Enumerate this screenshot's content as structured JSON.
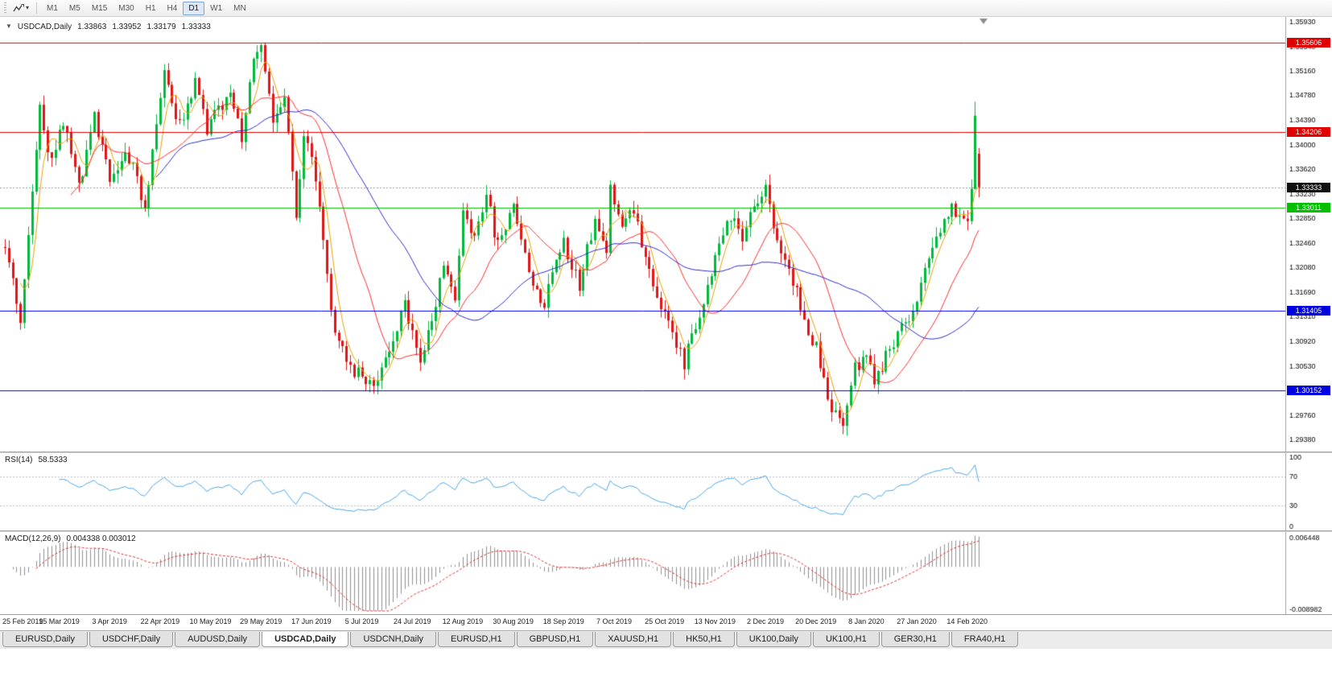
{
  "toolbar": {
    "timeframes": [
      {
        "label": "M1",
        "active": false
      },
      {
        "label": "M5",
        "active": false
      },
      {
        "label": "M15",
        "active": false
      },
      {
        "label": "M30",
        "active": false
      },
      {
        "label": "H1",
        "active": false
      },
      {
        "label": "H4",
        "active": false
      },
      {
        "label": "D1",
        "active": true
      },
      {
        "label": "W1",
        "active": false
      },
      {
        "label": "MN",
        "active": false
      }
    ]
  },
  "chart_header": {
    "collapse_icon": "▼",
    "symbol": "USDCAD,Daily",
    "open": "1.33863",
    "high": "1.33952",
    "low": "1.33179",
    "close": "1.33333"
  },
  "price_axis": {
    "ticks": [
      "1.35930",
      "1.35540",
      "1.35160",
      "1.34780",
      "1.34390",
      "1.34000",
      "1.33620",
      "1.33230",
      "1.32850",
      "1.32460",
      "1.32080",
      "1.31690",
      "1.31310",
      "1.30920",
      "1.30530",
      "1.30140",
      "1.29760",
      "1.29380"
    ]
  },
  "hlines": [
    {
      "price": 1.35606,
      "label": "1.35606",
      "color": "#e00000",
      "type": "resistance"
    },
    {
      "price": 1.34206,
      "label": "1.34206",
      "color": "#e00000",
      "type": "resistance"
    },
    {
      "price": 1.33011,
      "label": "1.33011",
      "color": "#00c000",
      "type": "level"
    },
    {
      "price": 1.31405,
      "label": "1.31405",
      "color": "#0000e0",
      "type": "support"
    },
    {
      "price": 1.30152,
      "label": "1.30152",
      "color": "#0000e0",
      "type": "support"
    }
  ],
  "current_price": {
    "value": 1.33333,
    "label": "1.33333"
  },
  "rsi_panel": {
    "name": "RSI(14)",
    "value": "58.5333",
    "axis": [
      "100",
      "70",
      "30",
      "0"
    ],
    "levels": [
      70,
      30
    ]
  },
  "macd_panel": {
    "name": "MACD(12,26,9)",
    "values": "0.004338 0.003012",
    "axis_top": "0.006448",
    "axis_bottom": "-0.008982"
  },
  "date_axis": {
    "labels": [
      "25 Feb 2019",
      "15 Mar 2019",
      "3 Apr 2019",
      "22 Apr 2019",
      "10 May 2019",
      "29 May 2019",
      "17 Jun 2019",
      "5 Jul 2019",
      "24 Jul 2019",
      "12 Aug 2019",
      "30 Aug 2019",
      "18 Sep 2019",
      "7 Oct 2019",
      "25 Oct 2019",
      "13 Nov 2019",
      "2 Dec 2019",
      "20 Dec 2019",
      "8 Jan 2020",
      "27 Jan 2020",
      "14 Feb 2020"
    ]
  },
  "tabs": {
    "items": [
      {
        "label": "EURUSD,Daily",
        "active": false
      },
      {
        "label": "USDCHF,Daily",
        "active": false
      },
      {
        "label": "AUDUSD,Daily",
        "active": false
      },
      {
        "label": "USDCAD,Daily",
        "active": true
      },
      {
        "label": "USDCNH,Daily",
        "active": false
      },
      {
        "label": "EURUSD,H1",
        "active": false
      },
      {
        "label": "GBPUSD,H1",
        "active": false
      },
      {
        "label": "XAUUSD,H1",
        "active": false
      },
      {
        "label": "HK50,H1",
        "active": false
      },
      {
        "label": "UK100,Daily",
        "active": false
      },
      {
        "label": "UK100,H1",
        "active": false
      },
      {
        "label": "GER30,H1",
        "active": false
      },
      {
        "label": "FRA40,H1",
        "active": false
      }
    ]
  },
  "chart_data": {
    "type": "candlestick",
    "symbol": "USDCAD",
    "timeframe": "Daily",
    "title": "USDCAD,Daily",
    "x_range": [
      "25 Feb 2019",
      "24 Feb 2020"
    ],
    "price_range": {
      "top": 1.3601,
      "bottom": 1.2919
    },
    "bars": 252,
    "bars_per_label": 13,
    "up_color": "#00b93c",
    "down_color": "#e01414",
    "anchors": [
      [
        0,
        1.324
      ],
      [
        4,
        1.313
      ],
      [
        9,
        1.346
      ],
      [
        12,
        1.337
      ],
      [
        15,
        1.3435
      ],
      [
        19,
        1.333
      ],
      [
        23,
        1.3445
      ],
      [
        27,
        1.3345
      ],
      [
        31,
        1.34
      ],
      [
        36,
        1.3305
      ],
      [
        41,
        1.352
      ],
      [
        45,
        1.343
      ],
      [
        49,
        1.35
      ],
      [
        52,
        1.342
      ],
      [
        55,
        1.3455
      ],
      [
        58,
        1.349
      ],
      [
        61,
        1.34
      ],
      [
        64,
        1.353
      ],
      [
        66,
        1.3555
      ],
      [
        69,
        1.343
      ],
      [
        72,
        1.348
      ],
      [
        75,
        1.329
      ],
      [
        77,
        1.342
      ],
      [
        80,
        1.335
      ],
      [
        85,
        1.31
      ],
      [
        90,
        1.3045
      ],
      [
        95,
        1.3018
      ],
      [
        100,
        1.309
      ],
      [
        103,
        1.315
      ],
      [
        107,
        1.3065
      ],
      [
        110,
        1.313
      ],
      [
        113,
        1.321
      ],
      [
        116,
        1.316
      ],
      [
        118,
        1.33
      ],
      [
        121,
        1.325
      ],
      [
        124,
        1.332
      ],
      [
        127,
        1.324
      ],
      [
        131,
        1.33
      ],
      [
        136,
        1.318
      ],
      [
        139,
        1.314
      ],
      [
        142,
        1.323
      ],
      [
        144,
        1.3245
      ],
      [
        148,
        1.318
      ],
      [
        152,
        1.329
      ],
      [
        155,
        1.323
      ],
      [
        156,
        1.333
      ],
      [
        159,
        1.328
      ],
      [
        162,
        1.33
      ],
      [
        166,
        1.32
      ],
      [
        170,
        1.313
      ],
      [
        175,
        1.306
      ],
      [
        178,
        1.312
      ],
      [
        181,
        1.318
      ],
      [
        183,
        1.323
      ],
      [
        187,
        1.329
      ],
      [
        190,
        1.326
      ],
      [
        193,
        1.331
      ],
      [
        196,
        1.333
      ],
      [
        200,
        1.323
      ],
      [
        204,
        1.317
      ],
      [
        207,
        1.311
      ],
      [
        209,
        1.308
      ],
      [
        213,
        1.299
      ],
      [
        216,
        1.295
      ],
      [
        219,
        1.305
      ],
      [
        222,
        1.306
      ],
      [
        224,
        1.303
      ],
      [
        228,
        1.308
      ],
      [
        231,
        1.311
      ],
      [
        235,
        1.316
      ],
      [
        238,
        1.323
      ],
      [
        241,
        1.327
      ],
      [
        244,
        1.331
      ],
      [
        246,
        1.328
      ],
      [
        248,
        1.329
      ],
      [
        249,
        1.333
      ],
      [
        250,
        1.3445
      ],
      [
        251,
        1.3333
      ]
    ],
    "last_candle": {
      "open": 1.33863,
      "high": 1.33952,
      "low": 1.33179,
      "close": 1.33333
    },
    "moving_averages": [
      {
        "period": 5,
        "color": "#e8a200"
      },
      {
        "period": 18,
        "color": "#ff2a2a"
      },
      {
        "period": 40,
        "color": "#2b2bcc"
      }
    ],
    "indicators": {
      "rsi": {
        "period": 14,
        "current": 58.5333,
        "color": "#4aa6e8"
      },
      "macd": {
        "fast": 12,
        "slow": 26,
        "signal": 9,
        "current": [
          0.004338,
          0.003012
        ],
        "range": [
          -0.008982,
          0.006448
        ],
        "histogram_color": "#8f8f8f",
        "signal_color": "#e03030"
      }
    }
  }
}
